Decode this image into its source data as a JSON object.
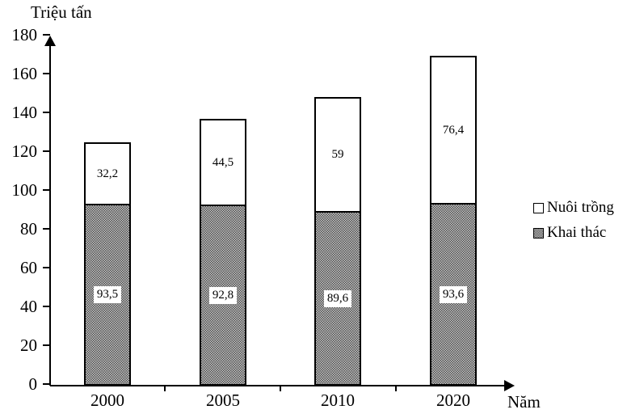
{
  "chart_data": {
    "type": "bar",
    "stacked": true,
    "title": "",
    "ylabel": "Triệu tấn",
    "xlabel": "Năm",
    "ylim": [
      0,
      180
    ],
    "ytick_step": 20,
    "y_tick_labels": [
      "0",
      "20",
      "40",
      "60",
      "80",
      "100",
      "120",
      "140",
      "160",
      "180"
    ],
    "categories": [
      "2000",
      "2005",
      "2010",
      "2020"
    ],
    "series": [
      {
        "name": "Khai thác",
        "values": [
          93.5,
          92.8,
          89.6,
          93.6
        ],
        "value_labels": [
          "93,5",
          "92,8",
          "89,6",
          "93,6"
        ]
      },
      {
        "name": "Nuôi trồng",
        "values": [
          32.2,
          44.5,
          59,
          76.4
        ],
        "value_labels": [
          "32,2",
          "44,5",
          "59",
          "76,4"
        ]
      }
    ],
    "grid": false,
    "legend_position": "right"
  },
  "legend": {
    "items": [
      {
        "label": "Nuôi trồng",
        "swatch": "white"
      },
      {
        "label": "Khai thác",
        "swatch": "gray-checker"
      }
    ]
  },
  "colors": {
    "axis": "#000000",
    "bar_border": "#000000",
    "nuoi_trong_fill": "#ffffff",
    "khai_thac_dark": "#4f4f4f",
    "khai_thac_light": "#c6c6c6"
  }
}
